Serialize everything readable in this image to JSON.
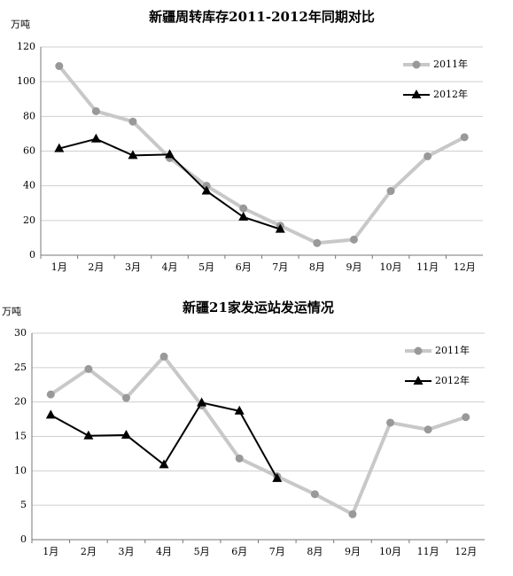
{
  "chart_data": [
    {
      "type": "line",
      "title": "新疆周转库存2011-2012年同期对比",
      "y_label": "万吨",
      "categories": [
        "1月",
        "2月",
        "3月",
        "4月",
        "5月",
        "6月",
        "7月",
        "8月",
        "9月",
        "10月",
        "11月",
        "12月"
      ],
      "series": [
        {
          "name": "2011年",
          "color": "#c8c8c8",
          "marker_color": "#999999",
          "marker": "circle",
          "values": [
            109,
            83,
            77,
            56,
            40,
            27,
            17,
            7,
            9,
            37,
            57,
            68
          ]
        },
        {
          "name": "2012年",
          "color": "#000000",
          "marker_color": "#000000",
          "marker": "triangle",
          "values": [
            61.5,
            67,
            57.5,
            58,
            37,
            22,
            15,
            null,
            null,
            null,
            null,
            null
          ]
        }
      ],
      "ylim": [
        0,
        120
      ],
      "yticks": [
        0,
        20,
        40,
        60,
        80,
        100,
        120
      ],
      "grid": true,
      "legend": "top-right"
    },
    {
      "type": "line",
      "title": "新疆21家发运站发运情况",
      "y_label": "万吨",
      "categories": [
        "1月",
        "2月",
        "3月",
        "4月",
        "5月",
        "6月",
        "7月",
        "8月",
        "9月",
        "10月",
        "11月",
        "12月"
      ],
      "series": [
        {
          "name": "2011年",
          "color": "#c8c8c8",
          "marker_color": "#999999",
          "marker": "circle",
          "values": [
            21.1,
            24.8,
            20.6,
            26.6,
            19.5,
            11.8,
            9.2,
            6.6,
            3.7,
            17,
            16,
            17.8
          ]
        },
        {
          "name": "2012年",
          "color": "#000000",
          "marker_color": "#000000",
          "marker": "triangle",
          "values": [
            18.1,
            15.1,
            15.2,
            10.9,
            19.9,
            18.7,
            8.9,
            null,
            null,
            null,
            null,
            null
          ]
        }
      ],
      "ylim": [
        0,
        30
      ],
      "yticks": [
        0,
        5,
        10,
        15,
        20,
        25,
        30
      ],
      "grid": true,
      "legend": "top-right"
    }
  ]
}
